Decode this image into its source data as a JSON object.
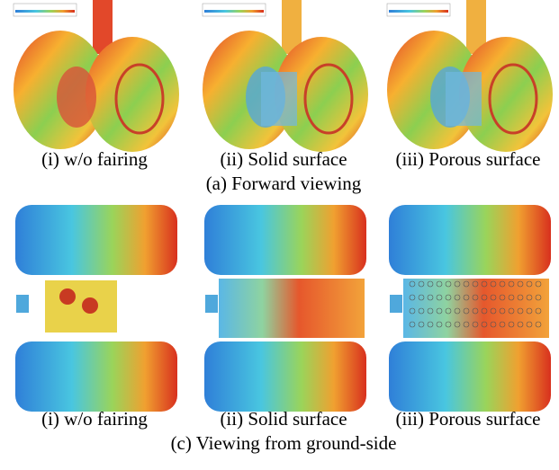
{
  "panels": [
    {
      "labels": [
        "(i) w/o fairing",
        "(ii) Solid surface",
        "(iii) Porous surface"
      ],
      "caption": "(a) Forward viewing"
    },
    {
      "labels": [
        "(i) w/o fairing",
        "(ii) Solid surface",
        "(iii) Porous surface"
      ],
      "caption": "(c) Viewing from ground-side"
    }
  ]
}
